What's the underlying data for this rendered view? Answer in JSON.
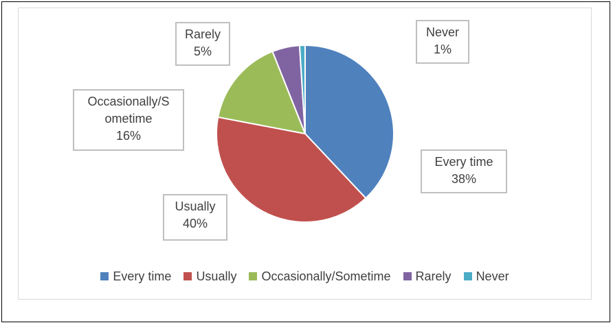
{
  "chart_data": {
    "type": "pie",
    "categories": [
      "Every time",
      "Usually",
      "Occasionally/Sometime",
      "Rarely",
      "Never"
    ],
    "values": [
      38,
      40,
      16,
      5,
      1
    ],
    "colors": [
      "#4f81bd",
      "#c0504d",
      "#9bbb59",
      "#8064a2",
      "#4bacc6"
    ],
    "slice_labels": [
      {
        "line1": "Every time",
        "line2": "38%"
      },
      {
        "line1": "Usually",
        "line2": "40%"
      },
      {
        "line1": "Occasionally/S",
        "line1b": "ometime",
        "line2": "16%"
      },
      {
        "line1": "Rarely",
        "line2": "5%"
      },
      {
        "line1": "Never",
        "line2": "1%"
      }
    ],
    "legend": {
      "position": "bottom",
      "items": [
        "Every time",
        "Usually",
        "Occasionally/Sometime",
        "Rarely",
        "Never"
      ]
    }
  }
}
